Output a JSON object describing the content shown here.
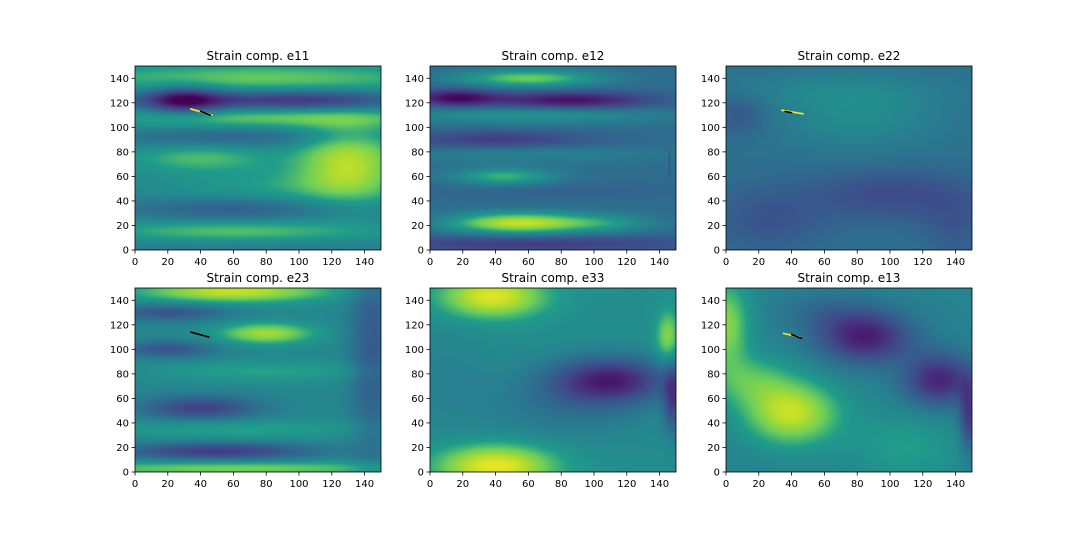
{
  "chart_data": [
    {
      "type": "heatmap",
      "title": "Strain comp. e11",
      "xlim": [
        0,
        150
      ],
      "ylim": [
        0,
        150
      ],
      "xticks": [
        0,
        20,
        40,
        60,
        80,
        100,
        120,
        140
      ],
      "yticks": [
        0,
        20,
        40,
        60,
        80,
        100,
        120,
        140
      ],
      "colormap": "viridis",
      "value_range": [
        0,
        1
      ],
      "base": 0.52,
      "blobs": [
        {
          "x": 75,
          "y": 140,
          "v": 0.22,
          "sx": 80,
          "sy": 8
        },
        {
          "x": 70,
          "y": 122,
          "v": -0.3,
          "sx": 60,
          "sy": 6
        },
        {
          "x": 30,
          "y": 122,
          "v": -0.35,
          "sx": 15,
          "sy": 8
        },
        {
          "x": 120,
          "y": 122,
          "v": -0.12,
          "sx": 30,
          "sy": 6
        },
        {
          "x": 80,
          "y": 108,
          "v": 0.22,
          "sx": 70,
          "sy": 6
        },
        {
          "x": 60,
          "y": 92,
          "v": -0.15,
          "sx": 60,
          "sy": 6
        },
        {
          "x": 130,
          "y": 72,
          "v": 0.35,
          "sx": 22,
          "sy": 22
        },
        {
          "x": 40,
          "y": 75,
          "v": 0.18,
          "sx": 30,
          "sy": 8
        },
        {
          "x": 90,
          "y": 52,
          "v": 0.1,
          "sx": 50,
          "sy": 10
        },
        {
          "x": 60,
          "y": 33,
          "v": -0.18,
          "sx": 50,
          "sy": 7
        },
        {
          "x": 60,
          "y": 15,
          "v": 0.2,
          "sx": 60,
          "sy": 7
        },
        {
          "x": 60,
          "y": 4,
          "v": -0.08,
          "sx": 80,
          "sy": 5
        }
      ],
      "streaks": [
        {
          "x1": 34,
          "y1": 115,
          "x2": 47,
          "y2": 110,
          "color": "#fde725"
        },
        {
          "x1": 40,
          "y1": 113,
          "x2": 46,
          "y2": 110,
          "color": "#000000"
        }
      ]
    },
    {
      "type": "heatmap",
      "title": "Strain comp. e12",
      "xlim": [
        0,
        150
      ],
      "ylim": [
        0,
        150
      ],
      "xticks": [
        0,
        20,
        40,
        60,
        80,
        100,
        120,
        140
      ],
      "yticks": [
        0,
        20,
        40,
        60,
        80,
        100,
        120,
        140
      ],
      "colormap": "viridis",
      "value_range": [
        0,
        1
      ],
      "base": 0.4,
      "blobs": [
        {
          "x": 60,
          "y": 140,
          "v": 0.35,
          "sx": 30,
          "sy": 5
        },
        {
          "x": 15,
          "y": 124,
          "v": -0.35,
          "sx": 18,
          "sy": 5
        },
        {
          "x": 85,
          "y": 122,
          "v": -0.35,
          "sx": 35,
          "sy": 5
        },
        {
          "x": 60,
          "y": 110,
          "v": 0.18,
          "sx": 60,
          "sy": 5
        },
        {
          "x": 40,
          "y": 90,
          "v": -0.2,
          "sx": 40,
          "sy": 5
        },
        {
          "x": 60,
          "y": 78,
          "v": 0.1,
          "sx": 60,
          "sy": 5
        },
        {
          "x": 45,
          "y": 60,
          "v": 0.28,
          "sx": 22,
          "sy": 5
        },
        {
          "x": 75,
          "y": 48,
          "v": -0.05,
          "sx": 60,
          "sy": 5
        },
        {
          "x": 55,
          "y": 22,
          "v": 0.5,
          "sx": 30,
          "sy": 6
        },
        {
          "x": 110,
          "y": 22,
          "v": 0.15,
          "sx": 20,
          "sy": 5
        },
        {
          "x": 60,
          "y": 5,
          "v": -0.2,
          "sx": 80,
          "sy": 5
        }
      ],
      "streaks": [
        {
          "x1": 146,
          "y1": 60,
          "x2": 146,
          "y2": 80,
          "color": "#3b528b"
        }
      ]
    },
    {
      "type": "heatmap",
      "title": "Strain comp. e22",
      "xlim": [
        0,
        150
      ],
      "ylim": [
        0,
        150
      ],
      "xticks": [
        0,
        20,
        40,
        60,
        80,
        100,
        120,
        140
      ],
      "yticks": [
        0,
        20,
        40,
        60,
        80,
        100,
        120,
        140
      ],
      "colormap": "viridis",
      "value_range": [
        0,
        1
      ],
      "base": 0.42,
      "blobs": [
        {
          "x": 80,
          "y": 110,
          "v": 0.12,
          "sx": 35,
          "sy": 20
        },
        {
          "x": 8,
          "y": 110,
          "v": -0.12,
          "sx": 12,
          "sy": 12
        },
        {
          "x": 100,
          "y": 45,
          "v": -0.16,
          "sx": 35,
          "sy": 15
        },
        {
          "x": 25,
          "y": 25,
          "v": -0.12,
          "sx": 25,
          "sy": 20
        },
        {
          "x": 60,
          "y": 130,
          "v": 0.06,
          "sx": 50,
          "sy": 10
        },
        {
          "x": 140,
          "y": 20,
          "v": -0.1,
          "sx": 15,
          "sy": 20
        }
      ],
      "streaks": [
        {
          "x1": 34,
          "y1": 114,
          "x2": 47,
          "y2": 111,
          "color": "#fde725"
        },
        {
          "x1": 36,
          "y1": 113,
          "x2": 40,
          "y2": 112,
          "color": "#000000"
        }
      ]
    },
    {
      "type": "heatmap",
      "title": "Strain comp. e23",
      "xlim": [
        0,
        150
      ],
      "ylim": [
        0,
        150
      ],
      "xticks": [
        0,
        20,
        40,
        60,
        80,
        100,
        120,
        140
      ],
      "yticks": [
        0,
        20,
        40,
        60,
        80,
        100,
        120,
        140
      ],
      "colormap": "viridis",
      "value_range": [
        0,
        1
      ],
      "base": 0.52,
      "blobs": [
        {
          "x": 60,
          "y": 147,
          "v": 0.38,
          "sx": 40,
          "sy": 6
        },
        {
          "x": 20,
          "y": 130,
          "v": -0.22,
          "sx": 25,
          "sy": 5
        },
        {
          "x": 80,
          "y": 113,
          "v": 0.32,
          "sx": 20,
          "sy": 6
        },
        {
          "x": 20,
          "y": 100,
          "v": -0.22,
          "sx": 20,
          "sy": 5
        },
        {
          "x": 80,
          "y": 82,
          "v": 0.12,
          "sx": 50,
          "sy": 6
        },
        {
          "x": 40,
          "y": 52,
          "v": -0.3,
          "sx": 25,
          "sy": 7
        },
        {
          "x": 60,
          "y": 35,
          "v": 0.12,
          "sx": 60,
          "sy": 6
        },
        {
          "x": 50,
          "y": 17,
          "v": -0.32,
          "sx": 40,
          "sy": 5
        },
        {
          "x": 60,
          "y": 3,
          "v": 0.25,
          "sx": 80,
          "sy": 4
        },
        {
          "x": 145,
          "y": 100,
          "v": -0.2,
          "sx": 10,
          "sy": 60
        }
      ],
      "streaks": [
        {
          "x1": 34,
          "y1": 114,
          "x2": 45,
          "y2": 110,
          "color": "#000000"
        }
      ]
    },
    {
      "type": "heatmap",
      "title": "Strain comp. e33",
      "xlim": [
        0,
        150
      ],
      "ylim": [
        0,
        150
      ],
      "xticks": [
        0,
        20,
        40,
        60,
        80,
        100,
        120,
        140
      ],
      "yticks": [
        0,
        20,
        40,
        60,
        80,
        100,
        120,
        140
      ],
      "colormap": "viridis",
      "value_range": [
        0,
        1
      ],
      "base": 0.55,
      "blobs": [
        {
          "x": 38,
          "y": 143,
          "v": 0.4,
          "sx": 22,
          "sy": 12
        },
        {
          "x": 40,
          "y": 5,
          "v": 0.42,
          "sx": 25,
          "sy": 12
        },
        {
          "x": 110,
          "y": 75,
          "v": -0.42,
          "sx": 25,
          "sy": 13
        },
        {
          "x": 85,
          "y": 55,
          "v": -0.12,
          "sx": 35,
          "sy": 20
        },
        {
          "x": 10,
          "y": 75,
          "v": -0.06,
          "sx": 20,
          "sy": 30
        },
        {
          "x": 148,
          "y": 60,
          "v": -0.3,
          "sx": 4,
          "sy": 20
        },
        {
          "x": 145,
          "y": 110,
          "v": 0.25,
          "sx": 5,
          "sy": 15
        }
      ],
      "streaks": []
    },
    {
      "type": "heatmap",
      "title": "Strain comp. e13",
      "xlim": [
        0,
        150
      ],
      "ylim": [
        0,
        150
      ],
      "xticks": [
        0,
        20,
        40,
        60,
        80,
        100,
        120,
        140
      ],
      "yticks": [
        0,
        20,
        40,
        60,
        80,
        100,
        120,
        140
      ],
      "colormap": "viridis",
      "value_range": [
        0,
        1
      ],
      "base": 0.5,
      "blobs": [
        {
          "x": 0,
          "y": 120,
          "v": 0.3,
          "sx": 10,
          "sy": 25
        },
        {
          "x": 40,
          "y": 48,
          "v": 0.4,
          "sx": 20,
          "sy": 18
        },
        {
          "x": 15,
          "y": 75,
          "v": 0.18,
          "sx": 18,
          "sy": 15
        },
        {
          "x": 85,
          "y": 110,
          "v": -0.4,
          "sx": 20,
          "sy": 15
        },
        {
          "x": 130,
          "y": 75,
          "v": -0.38,
          "sx": 15,
          "sy": 15
        },
        {
          "x": 60,
          "y": 130,
          "v": -0.1,
          "sx": 20,
          "sy": 12
        },
        {
          "x": 110,
          "y": 20,
          "v": 0.12,
          "sx": 25,
          "sy": 20
        },
        {
          "x": 148,
          "y": 45,
          "v": -0.3,
          "sx": 4,
          "sy": 20
        }
      ],
      "streaks": [
        {
          "x1": 35,
          "y1": 113,
          "x2": 45,
          "y2": 110,
          "color": "#fde725"
        },
        {
          "x1": 40,
          "y1": 112,
          "x2": 46,
          "y2": 109,
          "color": "#000000"
        }
      ]
    }
  ]
}
